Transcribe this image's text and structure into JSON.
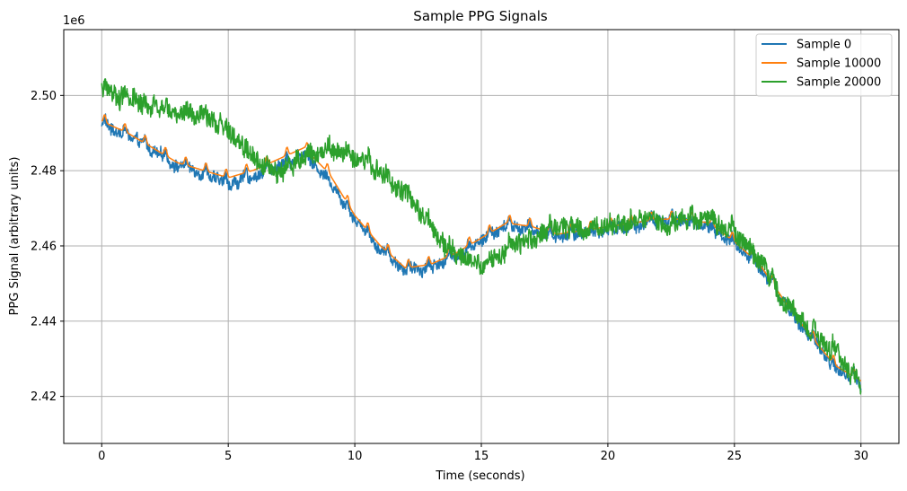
{
  "chart_data": {
    "type": "line",
    "title": "Sample PPG Signals",
    "xlabel": "Time (seconds)",
    "ylabel": "PPG Signal (arbitrary units)",
    "offset_text": "1e6",
    "xlim": [
      -1.5,
      31.5
    ],
    "ylim": [
      2.4075,
      2.5175
    ],
    "ylim_scaled_by": 1000000,
    "x_ticks": [
      0,
      5,
      10,
      15,
      20,
      25,
      30
    ],
    "x_tick_labels": [
      "0",
      "5",
      "10",
      "15",
      "20",
      "25",
      "30"
    ],
    "y_ticks": [
      2.42,
      2.44,
      2.46,
      2.48,
      2.5
    ],
    "y_tick_labels": [
      "2.42",
      "2.44",
      "2.46",
      "2.48",
      "2.50"
    ],
    "grid": true,
    "legend_position": "top-right",
    "series": [
      {
        "name": "Sample 0",
        "color": "#1f77b4",
        "style": "noisy",
        "noise": 0.0018,
        "x": [
          0,
          1,
          2,
          3,
          4,
          5,
          6,
          7,
          8,
          9,
          10,
          11,
          12,
          13,
          14,
          15,
          16,
          17,
          18,
          19,
          20,
          21,
          22,
          23,
          24,
          25,
          26,
          27,
          28,
          29,
          30
        ],
        "y": [
          2.493,
          2.49,
          2.486,
          2.482,
          2.48,
          2.477,
          2.479,
          2.482,
          2.485,
          2.478,
          2.468,
          2.46,
          2.454,
          2.455,
          2.458,
          2.462,
          2.466,
          2.465,
          2.463,
          2.464,
          2.465,
          2.466,
          2.467,
          2.467,
          2.466,
          2.461,
          2.455,
          2.445,
          2.436,
          2.428,
          2.424
        ]
      },
      {
        "name": "Sample 10000",
        "color": "#ff7f0e",
        "style": "smooth",
        "noise": 0,
        "x": [
          0,
          1,
          2,
          3,
          4,
          5,
          6,
          7,
          8,
          9,
          10,
          11,
          12,
          13,
          14,
          15,
          16,
          17,
          18,
          19,
          20,
          21,
          22,
          23,
          24,
          25,
          26,
          27,
          28,
          29,
          30
        ],
        "y": [
          2.494,
          2.491,
          2.487,
          2.483,
          2.481,
          2.479,
          2.481,
          2.484,
          2.487,
          2.48,
          2.469,
          2.461,
          2.455,
          2.456,
          2.459,
          2.463,
          2.467,
          2.466,
          2.464,
          2.465,
          2.466,
          2.467,
          2.468,
          2.468,
          2.467,
          2.462,
          2.456,
          2.446,
          2.437,
          2.429,
          2.425
        ]
      },
      {
        "name": "Sample 20000",
        "color": "#2ca02c",
        "style": "noisy",
        "noise": 0.003,
        "x": [
          0,
          1,
          2,
          3,
          4,
          5,
          6,
          7,
          8,
          9,
          10,
          11,
          12,
          13,
          14,
          15,
          16,
          17,
          18,
          19,
          20,
          21,
          22,
          23,
          24,
          25,
          26,
          27,
          28,
          29,
          30
        ],
        "y": [
          2.502,
          2.5,
          2.497,
          2.496,
          2.495,
          2.491,
          2.484,
          2.48,
          2.484,
          2.487,
          2.485,
          2.48,
          2.475,
          2.466,
          2.458,
          2.455,
          2.46,
          2.462,
          2.466,
          2.465,
          2.466,
          2.467,
          2.467,
          2.467,
          2.468,
          2.464,
          2.456,
          2.446,
          2.438,
          2.432,
          2.423
        ]
      }
    ]
  }
}
